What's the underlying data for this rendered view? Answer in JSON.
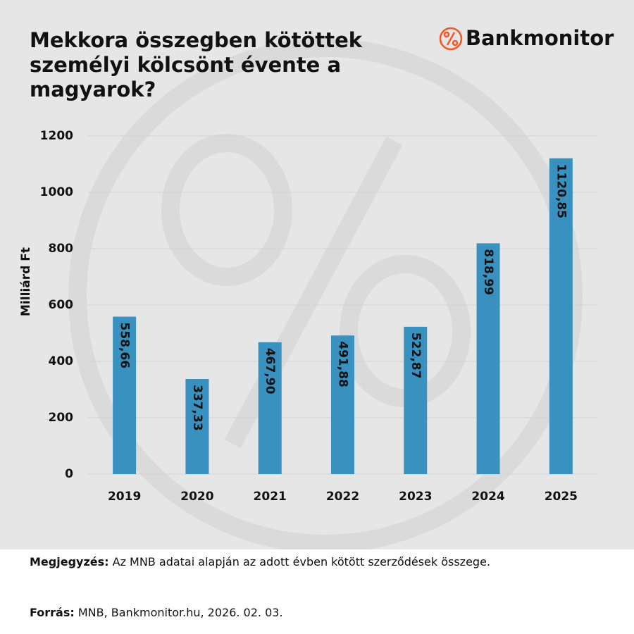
{
  "chart_data": {
    "type": "bar",
    "title": "Mekkora összegben kötöttek személyi kölcsönt évente a magyarok?",
    "brand": "Bankmonitor",
    "y_label": "Milliárd Ft",
    "categories": [
      "2019",
      "2020",
      "2021",
      "2022",
      "2023",
      "2024",
      "2025"
    ],
    "values": [
      558.66,
      337.33,
      467.9,
      491.88,
      522.87,
      818.99,
      1120.85
    ],
    "value_labels": [
      "558,66",
      "337,33",
      "467,90",
      "491,88",
      "522,87",
      "818,99",
      "1120,85"
    ],
    "color": "#3891be",
    "ylim": [
      0,
      1200
    ],
    "yticks": [
      0,
      200,
      400,
      600,
      800,
      1000,
      1200
    ],
    "grid": true,
    "note": {
      "label": "Megjegyzés:",
      "text": "Az MNB adatai alapján az adott évben kötött szerződések összege."
    },
    "source": {
      "label": "Forrás:",
      "text": "MNB, Bankmonitor.hu, 2026. 02. 03."
    }
  }
}
